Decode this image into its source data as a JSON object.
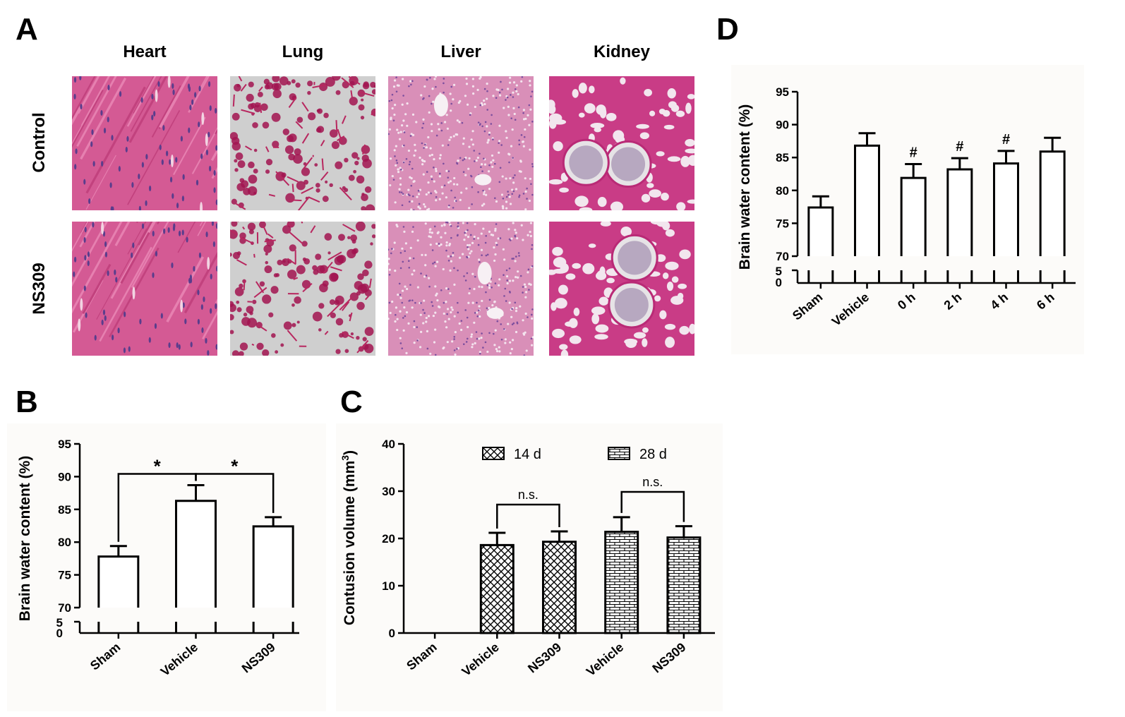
{
  "panel_labels": {
    "a": "A",
    "b": "B",
    "c": "C",
    "d": "D"
  },
  "histology": {
    "columns": [
      "Heart",
      "Lung",
      "Liver",
      "Kidney"
    ],
    "rows": [
      "Control",
      "NS309"
    ],
    "colors": {
      "heart": "#d45a94",
      "lung_bg": "#cfcfcf",
      "lung_tissue": "#a21450",
      "liver": "#d98fb8",
      "kidney": "#c93c86"
    }
  },
  "chart_data": [
    {
      "id": "B",
      "type": "bar",
      "categories": [
        "Sham",
        "Vehicle",
        "NS309"
      ],
      "values": [
        77.8,
        86.3,
        82.4
      ],
      "errors": [
        1.6,
        2.4,
        1.4
      ],
      "ylabel": "Brain water content (%)",
      "xlabel": "",
      "ylim": [
        70,
        95
      ],
      "axis_break": true,
      "low_ticks": [
        "0",
        "5"
      ],
      "yticks": [
        70,
        75,
        80,
        85,
        90,
        95
      ],
      "comparisons": [
        {
          "from": 0,
          "to": 1,
          "label": "*"
        },
        {
          "from": 1,
          "to": 2,
          "label": "*"
        }
      ]
    },
    {
      "id": "C",
      "type": "bar",
      "categories": [
        "Sham",
        "Vehicle",
        "NS309",
        "Vehicle",
        "NS309"
      ],
      "series": [
        {
          "name": "14 d",
          "pattern": "crosshatch",
          "values": [
            null,
            18.6,
            19.3,
            null,
            null
          ],
          "errors": [
            null,
            2.6,
            2.2,
            null,
            null
          ]
        },
        {
          "name": "28 d",
          "pattern": "brick",
          "values": [
            null,
            null,
            null,
            21.4,
            20.2
          ],
          "errors": [
            null,
            null,
            null,
            3.1,
            2.4
          ]
        }
      ],
      "ylabel": "Contusion volume (mm3)",
      "ylim": [
        0,
        40
      ],
      "yticks": [
        0,
        10,
        20,
        30,
        40
      ],
      "comparisons": [
        {
          "from": 1,
          "to": 2,
          "label": "n.s."
        },
        {
          "from": 3,
          "to": 4,
          "label": "n.s."
        }
      ]
    },
    {
      "id": "D",
      "type": "bar",
      "categories": [
        "Sham",
        "Vehicle",
        "0 h",
        "2 h",
        "4 h",
        "6 h"
      ],
      "values": [
        77.4,
        86.8,
        81.9,
        83.2,
        84.1,
        85.9
      ],
      "errors": [
        1.7,
        1.9,
        2.1,
        1.7,
        1.9,
        2.1
      ],
      "marks": [
        "",
        "",
        "#",
        "#",
        "#",
        ""
      ],
      "ylabel": "Brain water content (%)",
      "ylim": [
        70,
        95
      ],
      "axis_break": true,
      "low_ticks": [
        "0",
        "5"
      ],
      "yticks": [
        70,
        75,
        80,
        85,
        90,
        95
      ]
    }
  ]
}
